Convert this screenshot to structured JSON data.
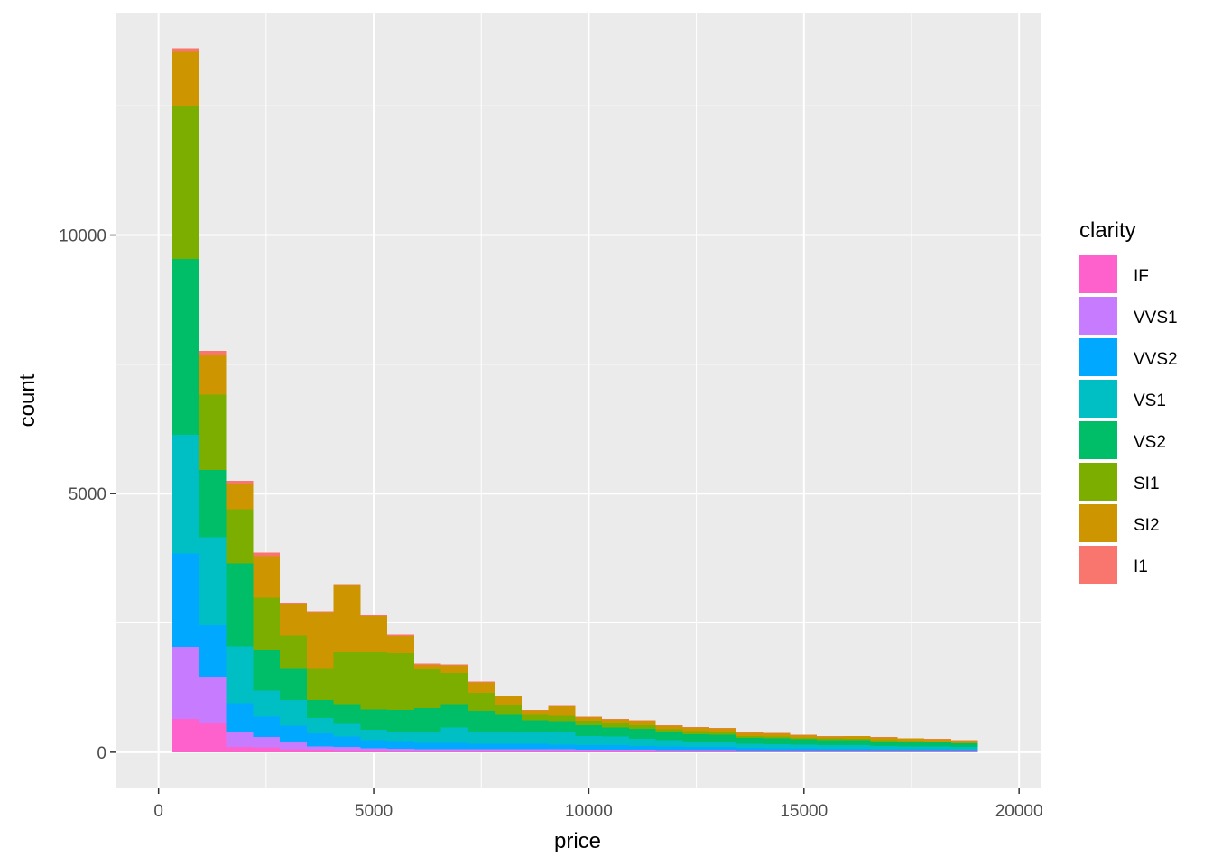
{
  "chart_data": {
    "type": "bar",
    "subtype": "stacked-histogram",
    "xlabel": "price",
    "ylabel": "count",
    "xlim": [
      -1000,
      20500
    ],
    "ylim": [
      -700,
      14300
    ],
    "x_ticks": [
      0,
      5000,
      10000,
      15000,
      20000
    ],
    "x_tick_labels": [
      "0",
      "5000",
      "10000",
      "15000",
      "20000"
    ],
    "y_ticks": [
      0,
      5000,
      10000
    ],
    "y_tick_labels": [
      "0",
      "5000",
      "10000"
    ],
    "grid": true,
    "legend": {
      "title": "clarity",
      "position": "right"
    },
    "bin_edges": [
      326,
      950,
      1574,
      2198,
      2822,
      3446,
      4070,
      4694,
      5318,
      5942,
      6566,
      7190,
      7814,
      8438,
      9062,
      9686,
      10310,
      10934,
      11558,
      12182,
      12806,
      13430,
      14054,
      14678,
      15302,
      15926,
      16550,
      17174,
      17798,
      18422,
      19046
    ],
    "series": [
      {
        "name": "IF",
        "color": "#ff61cc",
        "values": [
          640,
          560,
          100,
          90,
          60,
          50,
          40,
          40,
          30,
          30,
          30,
          30,
          30,
          30,
          30,
          30,
          30,
          30,
          20,
          20,
          20,
          20,
          15,
          15,
          15,
          15,
          15,
          15,
          15,
          15
        ]
      },
      {
        "name": "VVS1",
        "color": "#c77cff",
        "values": [
          1400,
          900,
          300,
          200,
          150,
          60,
          60,
          40,
          40,
          30,
          30,
          30,
          30,
          30,
          30,
          20,
          20,
          20,
          20,
          20,
          20,
          15,
          15,
          15,
          10,
          10,
          10,
          10,
          10,
          10
        ]
      },
      {
        "name": "VVS2",
        "color": "#00a9ff",
        "values": [
          1800,
          1000,
          550,
          400,
          300,
          250,
          200,
          150,
          150,
          120,
          120,
          100,
          100,
          100,
          90,
          90,
          90,
          70,
          70,
          60,
          60,
          50,
          45,
          45,
          40,
          40,
          35,
          30,
          30,
          25
        ]
      },
      {
        "name": "VS1",
        "color": "#00bfc4",
        "values": [
          2300,
          1700,
          1100,
          500,
          500,
          300,
          250,
          200,
          180,
          220,
          300,
          240,
          230,
          230,
          230,
          170,
          160,
          140,
          120,
          110,
          110,
          80,
          80,
          75,
          70,
          70,
          60,
          60,
          55,
          50
        ]
      },
      {
        "name": "VS2",
        "color": "#00be67",
        "values": [
          3400,
          1300,
          1600,
          800,
          600,
          350,
          380,
          400,
          420,
          450,
          450,
          400,
          330,
          230,
          220,
          210,
          180,
          190,
          150,
          140,
          130,
          110,
          110,
          100,
          100,
          100,
          90,
          80,
          80,
          70
        ]
      },
      {
        "name": "SI1",
        "color": "#7cae00",
        "values": [
          2950,
          1450,
          1050,
          1000,
          650,
          600,
          1000,
          1100,
          1100,
          750,
          600,
          350,
          200,
          100,
          100,
          90,
          80,
          70,
          60,
          60,
          50,
          40,
          40,
          30,
          30,
          25,
          25,
          25,
          20,
          15
        ]
      },
      {
        "name": "SI2",
        "color": "#cd9600",
        "values": [
          1050,
          780,
          480,
          800,
          600,
          1100,
          1300,
          700,
          330,
          90,
          150,
          200,
          170,
          90,
          190,
          70,
          70,
          90,
          70,
          70,
          70,
          60,
          60,
          50,
          40,
          50,
          50,
          45,
          40,
          40
        ]
      },
      {
        "name": "I1",
        "color": "#f8766d",
        "values": [
          70,
          70,
          70,
          70,
          30,
          20,
          20,
          20,
          20,
          30,
          20,
          20,
          10,
          10,
          10,
          10,
          10,
          10,
          10,
          10,
          10,
          10,
          5,
          5,
          5,
          5,
          5,
          5,
          5,
          5
        ]
      }
    ],
    "legend_order": [
      "IF",
      "VVS1",
      "VVS2",
      "VS1",
      "VS2",
      "SI1",
      "SI2",
      "I1"
    ]
  }
}
